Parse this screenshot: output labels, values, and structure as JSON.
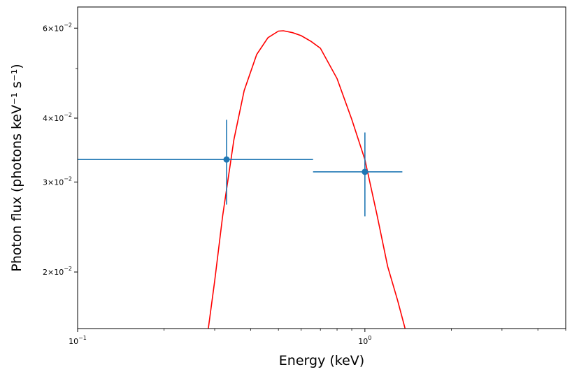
{
  "chart_data": {
    "type": "scatter",
    "title": "",
    "xlabel": "Energy (keV)",
    "ylabel": "Photon flux (photons keV⁻¹ s⁻¹)",
    "xscale": "log",
    "yscale": "log",
    "xlim": [
      0.1,
      5.0
    ],
    "ylim": [
      0.0155,
      0.066
    ],
    "grid": false,
    "legend": "none",
    "x_ticks": [
      {
        "value": 0.1,
        "base": "10",
        "exp": "−1"
      },
      {
        "value": 1.0,
        "base": "10",
        "exp": "0"
      }
    ],
    "y_ticks": [
      {
        "value": 0.02,
        "mant": "2",
        "base": "10",
        "exp": "−2"
      },
      {
        "value": 0.03,
        "mant": "3",
        "base": "10",
        "exp": "−2"
      },
      {
        "value": 0.04,
        "mant": "4",
        "base": "10",
        "exp": "−2"
      },
      {
        "value": 0.06,
        "mant": "6",
        "base": "10",
        "exp": "−2"
      }
    ],
    "data_points": {
      "color": "#1f77b4",
      "points": [
        {
          "x": 0.33,
          "x_low": 0.1,
          "x_high": 0.66,
          "y": 0.0332,
          "y_low": 0.0271,
          "y_high": 0.0397
        },
        {
          "x": 1.0,
          "x_low": 0.66,
          "x_high": 1.35,
          "y": 0.0314,
          "y_low": 0.0257,
          "y_high": 0.0375
        }
      ]
    },
    "model": {
      "color": "#ff0000",
      "x": [
        0.285,
        0.3,
        0.32,
        0.35,
        0.38,
        0.42,
        0.46,
        0.5,
        0.52,
        0.56,
        0.6,
        0.65,
        0.7,
        0.8,
        0.9,
        1.0,
        1.1,
        1.2,
        1.3,
        1.38
      ],
      "y": [
        0.0155,
        0.0192,
        0.0258,
        0.0363,
        0.0453,
        0.0533,
        0.0575,
        0.0592,
        0.0593,
        0.0588,
        0.058,
        0.0565,
        0.0548,
        0.0478,
        0.0398,
        0.0332,
        0.026,
        0.0205,
        0.0176,
        0.0155
      ]
    }
  }
}
